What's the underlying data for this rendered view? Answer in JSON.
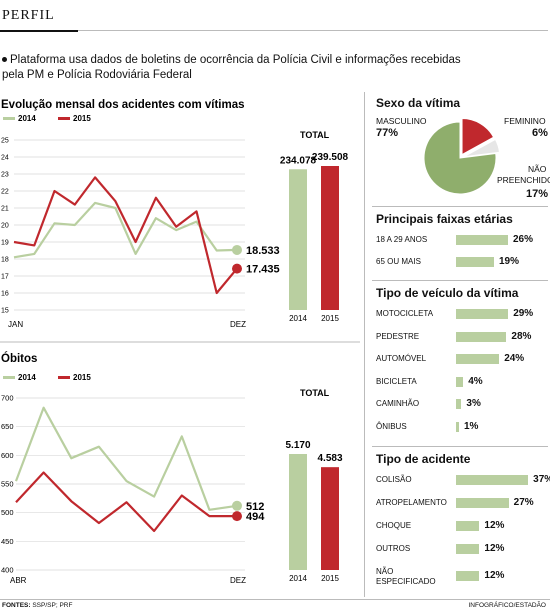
{
  "header": {
    "section": "PERFIL"
  },
  "intro": {
    "line1": "Plataforma usa dados de boletins de ocorrência da Polícia Civil e informações recebidas",
    "line2": "pela PM e Polícia Rodoviária Federal"
  },
  "colors": {
    "green": "#b9cfa0",
    "red": "#c0282d",
    "pie_green": "#8fae6c",
    "pie_red": "#c0282d",
    "pie_gray": "#e6e6e6"
  },
  "chart_data": [
    {
      "id": "acidentes",
      "type": "line",
      "title": "Evolução mensal dos acidentes com vítimas",
      "legend": [
        "2014",
        "2015"
      ],
      "x_start": "JAN",
      "x_end": "DEZ",
      "ylim": [
        15,
        25
      ],
      "yticks": [
        15,
        16,
        17,
        18,
        19,
        20,
        21,
        22,
        23,
        24,
        25
      ],
      "series": [
        {
          "name": "2014",
          "color": "#b9cfa0",
          "values": [
            18.1,
            18.3,
            20.1,
            20.0,
            21.3,
            21.0,
            18.3,
            20.4,
            19.7,
            20.2,
            18.5,
            18.533
          ],
          "end_label": "18.533"
        },
        {
          "name": "2015",
          "color": "#c0282d",
          "values": [
            19.0,
            18.8,
            22.0,
            21.2,
            22.8,
            21.4,
            19.0,
            21.6,
            19.9,
            20.8,
            16.0,
            17.435
          ],
          "end_label": "17.435"
        }
      ],
      "total": {
        "title": "TOTAL",
        "labels": [
          "234.078",
          "239.508"
        ],
        "values": [
          234078,
          239508
        ],
        "years": [
          "2014",
          "2015"
        ]
      }
    },
    {
      "id": "obitos",
      "type": "line",
      "title": "Óbitos",
      "legend": [
        "2014",
        "2015"
      ],
      "x_start": "ABR",
      "x_end": "DEZ",
      "ylim": [
        400,
        700
      ],
      "yticks": [
        400,
        450,
        500,
        550,
        600,
        650,
        700
      ],
      "series": [
        {
          "name": "2014",
          "color": "#b9cfa0",
          "values": [
            555,
            683,
            595,
            615,
            555,
            528,
            633,
            505,
            512
          ],
          "end_label": "512"
        },
        {
          "name": "2015",
          "color": "#c0282d",
          "values": [
            518,
            570,
            520,
            482,
            518,
            468,
            530,
            494,
            494
          ],
          "end_label": "494"
        }
      ],
      "total": {
        "title": "TOTAL",
        "labels": [
          "5.170",
          "4.583"
        ],
        "values": [
          5170,
          4583
        ],
        "years": [
          "2014",
          "2015"
        ]
      }
    }
  ],
  "sexo": {
    "title": "Sexo da vítima",
    "masculino": {
      "label": "MASCULINO",
      "value": "77%",
      "pct": 77
    },
    "feminino": {
      "label": "FEMININO",
      "value": "6%",
      "pct": 6
    },
    "nao_pre_1": "NÃO",
    "nao_pre_2": "PREENCHIDO",
    "nao_pre_value": "17%",
    "nao_pre_pct": 17
  },
  "faixas": {
    "title": "Principais faixas etárias",
    "items": [
      {
        "label": "18 A 29 ANOS",
        "value": "26%",
        "pct": 26
      },
      {
        "label": "65 OU MAIS",
        "value": "19%",
        "pct": 19
      }
    ]
  },
  "veiculo": {
    "title": "Tipo de veículo da vítima",
    "items": [
      {
        "label": "MOTOCICLETA",
        "value": "29%",
        "pct": 29
      },
      {
        "label": "PEDESTRE",
        "value": "28%",
        "pct": 28
      },
      {
        "label": "AUTOMÓVEL",
        "value": "24%",
        "pct": 24
      },
      {
        "label": "BICICLETA",
        "value": "4%",
        "pct": 4
      },
      {
        "label": "CAMINHÃO",
        "value": "3%",
        "pct": 3
      },
      {
        "label": "ÔNIBUS",
        "value": "1%",
        "pct": 1
      }
    ]
  },
  "acidente": {
    "title": "Tipo de acidente",
    "items": [
      {
        "label": "COLISÃO",
        "value": "37%",
        "pct": 37
      },
      {
        "label": "ATROPELAMENTO",
        "value": "27%",
        "pct": 27
      },
      {
        "label": "CHOQUE",
        "value": "12%",
        "pct": 12
      },
      {
        "label": "OUTROS",
        "value": "12%",
        "pct": 12
      },
      {
        "label": "NÃO",
        "label2": "ESPECIFICADO",
        "value": "12%",
        "pct": 12
      }
    ]
  },
  "footer": {
    "fontes_label": "FONTES:",
    "fontes": "SSP/SP; PRF",
    "credit": "INFOGRÁFICO/ESTADÃO"
  }
}
